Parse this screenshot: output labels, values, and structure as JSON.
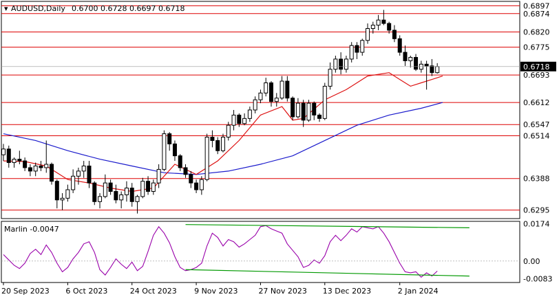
{
  "header": {
    "symbol": "AUDUSD,Daily",
    "ohlc": "0.6700 0.6728 0.6697 0.6718"
  },
  "colors": {
    "level_line": "#dd0000",
    "ma_fast": "#dd1111",
    "ma_slow": "#1a1acc",
    "oscillator": "#9900aa",
    "trendline": "#009900",
    "candle": "#000000",
    "current_price_bg": "#000000"
  },
  "chart_data": [
    {
      "type": "candlestick",
      "title": "AUDUSD,Daily",
      "ylim": [
        0.627,
        0.691
      ],
      "price_labels": [
        "0.6897",
        "0.6874",
        "0.6820",
        "0.6775",
        "0.6693",
        "0.6612",
        "0.6547",
        "0.6514",
        "0.6388",
        "0.6295"
      ],
      "current_price": "0.6718",
      "levels": [
        0.6897,
        0.6874,
        0.682,
        0.6775,
        0.6693,
        0.6612,
        0.6547,
        0.6514,
        0.6388,
        0.6295
      ],
      "x_labels": [
        "20 Sep 2023",
        "6 Oct 2023",
        "24 Oct 2023",
        "9 Nov 2023",
        "27 Nov 2023",
        "13 Dec 2023",
        "2 Jan 2024"
      ],
      "x_label_index": [
        0,
        12,
        24,
        36,
        48,
        60,
        74
      ],
      "candles": [
        [
          0.6458,
          0.649,
          0.644,
          0.6475
        ],
        [
          0.6475,
          0.6485,
          0.642,
          0.6435
        ],
        [
          0.6435,
          0.645,
          0.642,
          0.6445
        ],
        [
          0.6445,
          0.647,
          0.643,
          0.644
        ],
        [
          0.644,
          0.645,
          0.641,
          0.642
        ],
        [
          0.642,
          0.643,
          0.6395,
          0.641
        ],
        [
          0.641,
          0.6435,
          0.6395,
          0.6425
        ],
        [
          0.6425,
          0.644,
          0.641,
          0.642
        ],
        [
          0.642,
          0.65,
          0.6405,
          0.643
        ],
        [
          0.643,
          0.6435,
          0.637,
          0.638
        ],
        [
          0.638,
          0.6385,
          0.63,
          0.6325
        ],
        [
          0.6325,
          0.6345,
          0.6295,
          0.633
        ],
        [
          0.633,
          0.637,
          0.632,
          0.6355
        ],
        [
          0.6355,
          0.6415,
          0.6345,
          0.6395
        ],
        [
          0.6395,
          0.642,
          0.637,
          0.641
        ],
        [
          0.641,
          0.644,
          0.639,
          0.6425
        ],
        [
          0.6425,
          0.644,
          0.636,
          0.6375
        ],
        [
          0.6375,
          0.638,
          0.631,
          0.632
        ],
        [
          0.632,
          0.6345,
          0.63,
          0.6335
        ],
        [
          0.6335,
          0.64,
          0.633,
          0.6375
        ],
        [
          0.6375,
          0.6385,
          0.634,
          0.635
        ],
        [
          0.635,
          0.637,
          0.6315,
          0.6325
        ],
        [
          0.6325,
          0.635,
          0.63,
          0.634
        ],
        [
          0.634,
          0.638,
          0.632,
          0.636
        ],
        [
          0.636,
          0.6375,
          0.6305,
          0.632
        ],
        [
          0.632,
          0.634,
          0.6285,
          0.6335
        ],
        [
          0.6335,
          0.639,
          0.633,
          0.638
        ],
        [
          0.638,
          0.6395,
          0.634,
          0.635
        ],
        [
          0.635,
          0.6385,
          0.634,
          0.6375
        ],
        [
          0.6375,
          0.643,
          0.636,
          0.6415
        ],
        [
          0.6415,
          0.653,
          0.641,
          0.652
        ],
        [
          0.652,
          0.6525,
          0.647,
          0.649
        ],
        [
          0.649,
          0.65,
          0.644,
          0.6455
        ],
        [
          0.6455,
          0.646,
          0.641,
          0.642
        ],
        [
          0.642,
          0.643,
          0.639,
          0.64
        ],
        [
          0.64,
          0.641,
          0.636,
          0.6375
        ],
        [
          0.6375,
          0.6385,
          0.6345,
          0.6355
        ],
        [
          0.6355,
          0.6395,
          0.634,
          0.6385
        ],
        [
          0.6385,
          0.652,
          0.638,
          0.651
        ],
        [
          0.651,
          0.653,
          0.648,
          0.65
        ],
        [
          0.65,
          0.651,
          0.646,
          0.647
        ],
        [
          0.647,
          0.652,
          0.6465,
          0.651
        ],
        [
          0.651,
          0.6555,
          0.65,
          0.6545
        ],
        [
          0.6545,
          0.659,
          0.653,
          0.6575
        ],
        [
          0.6575,
          0.658,
          0.654,
          0.655
        ],
        [
          0.655,
          0.658,
          0.6545,
          0.6565
        ],
        [
          0.6565,
          0.66,
          0.6555,
          0.659
        ],
        [
          0.659,
          0.663,
          0.658,
          0.662
        ],
        [
          0.662,
          0.665,
          0.661,
          0.664
        ],
        [
          0.664,
          0.6685,
          0.663,
          0.667
        ],
        [
          0.667,
          0.6675,
          0.66,
          0.6615
        ],
        [
          0.6615,
          0.664,
          0.66,
          0.6625
        ],
        [
          0.6625,
          0.669,
          0.662,
          0.6675
        ],
        [
          0.6675,
          0.669,
          0.6615,
          0.6625
        ],
        [
          0.6625,
          0.663,
          0.656,
          0.657
        ],
        [
          0.657,
          0.6625,
          0.6565,
          0.661
        ],
        [
          0.661,
          0.662,
          0.654,
          0.656
        ],
        [
          0.656,
          0.662,
          0.6555,
          0.661
        ],
        [
          0.661,
          0.6615,
          0.656,
          0.6575
        ],
        [
          0.6575,
          0.658,
          0.6555,
          0.6565
        ],
        [
          0.6565,
          0.667,
          0.656,
          0.666
        ],
        [
          0.666,
          0.673,
          0.665,
          0.671
        ],
        [
          0.671,
          0.675,
          0.67,
          0.674
        ],
        [
          0.674,
          0.676,
          0.6695,
          0.671
        ],
        [
          0.671,
          0.675,
          0.67,
          0.674
        ],
        [
          0.674,
          0.679,
          0.673,
          0.678
        ],
        [
          0.678,
          0.679,
          0.674,
          0.676
        ],
        [
          0.676,
          0.68,
          0.675,
          0.6795
        ],
        [
          0.6795,
          0.6845,
          0.6785,
          0.683
        ],
        [
          0.683,
          0.685,
          0.6815,
          0.684
        ],
        [
          0.684,
          0.687,
          0.6825,
          0.6855
        ],
        [
          0.6855,
          0.6885,
          0.684,
          0.6845
        ],
        [
          0.6845,
          0.685,
          0.6815,
          0.6825
        ],
        [
          0.6825,
          0.684,
          0.679,
          0.68
        ],
        [
          0.68,
          0.681,
          0.675,
          0.676
        ],
        [
          0.676,
          0.678,
          0.672,
          0.6735
        ],
        [
          0.6735,
          0.675,
          0.6715,
          0.6745
        ],
        [
          0.6745,
          0.6755,
          0.6705,
          0.671
        ],
        [
          0.671,
          0.6735,
          0.67,
          0.6725
        ],
        [
          0.6725,
          0.6735,
          0.665,
          0.672
        ],
        [
          0.672,
          0.674,
          0.669,
          0.67
        ],
        [
          0.67,
          0.6728,
          0.6697,
          0.6718
        ]
      ],
      "ma_fast": [
        [
          0,
          0.644
        ],
        [
          4,
          0.6438
        ],
        [
          8,
          0.6425
        ],
        [
          12,
          0.6385
        ],
        [
          16,
          0.6375
        ],
        [
          20,
          0.636
        ],
        [
          24,
          0.635
        ],
        [
          28,
          0.636
        ],
        [
          32,
          0.643
        ],
        [
          36,
          0.64
        ],
        [
          40,
          0.644
        ],
        [
          44,
          0.65
        ],
        [
          48,
          0.6575
        ],
        [
          52,
          0.66
        ],
        [
          54,
          0.656
        ],
        [
          56,
          0.6565
        ],
        [
          60,
          0.662
        ],
        [
          64,
          0.665
        ],
        [
          68,
          0.669
        ],
        [
          72,
          0.67
        ],
        [
          74,
          0.668
        ],
        [
          76,
          0.666
        ],
        [
          78,
          0.667
        ],
        [
          80,
          0.668
        ],
        [
          82,
          0.669
        ]
      ],
      "ma_slow": [
        [
          0,
          0.652
        ],
        [
          6,
          0.65
        ],
        [
          12,
          0.647
        ],
        [
          18,
          0.6445
        ],
        [
          24,
          0.6425
        ],
        [
          30,
          0.6405
        ],
        [
          36,
          0.64
        ],
        [
          42,
          0.641
        ],
        [
          48,
          0.643
        ],
        [
          54,
          0.6455
        ],
        [
          60,
          0.65
        ],
        [
          66,
          0.6545
        ],
        [
          72,
          0.6575
        ],
        [
          78,
          0.6595
        ],
        [
          82,
          0.6612
        ]
      ]
    },
    {
      "type": "line",
      "title": "Marlin -0.0047",
      "ylim": [
        -0.01,
        0.0185
      ],
      "y_labels": [
        "0.0174",
        "0.00",
        "-0.0083"
      ],
      "y_values": [
        0.0174,
        0.0,
        -0.0083
      ],
      "series": [
        {
          "values": [
            0.003,
            0.0005,
            -0.002,
            -0.0035,
            -0.001,
            0.0035,
            0.0055,
            0.003,
            0.0075,
            0.004,
            -0.001,
            -0.005,
            -0.003,
            0.001,
            0.004,
            0.008,
            0.009,
            0.004,
            -0.004,
            -0.0065,
            -0.003,
            0.001,
            -0.0015,
            -0.0035,
            -0.0005,
            -0.0045,
            -0.0025,
            0.0045,
            0.012,
            0.016,
            0.013,
            0.0085,
            0.002,
            -0.003,
            -0.0045,
            -0.004,
            -0.003,
            -0.001,
            0.007,
            0.013,
            0.011,
            0.007,
            0.01,
            0.009,
            0.0065,
            0.008,
            0.01,
            0.012,
            0.016,
            0.0165,
            0.015,
            0.014,
            0.013,
            0.008,
            0.005,
            0.002,
            -0.003,
            -0.002,
            0.0005,
            -0.001,
            0.0025,
            0.009,
            0.012,
            0.0095,
            0.012,
            0.015,
            0.0135,
            0.016,
            0.0155,
            0.015,
            0.016,
            0.013,
            0.009,
            0.004,
            -0.001,
            -0.005,
            -0.0055,
            -0.005,
            -0.0075,
            -0.0055,
            -0.007,
            -0.0047
          ]
        }
      ],
      "trendlines": [
        {
          "from": [
            34,
            0.017
          ],
          "to": [
            87,
            0.0155
          ]
        },
        {
          "from": [
            34,
            -0.004
          ],
          "to": [
            87,
            -0.007
          ]
        }
      ]
    }
  ]
}
